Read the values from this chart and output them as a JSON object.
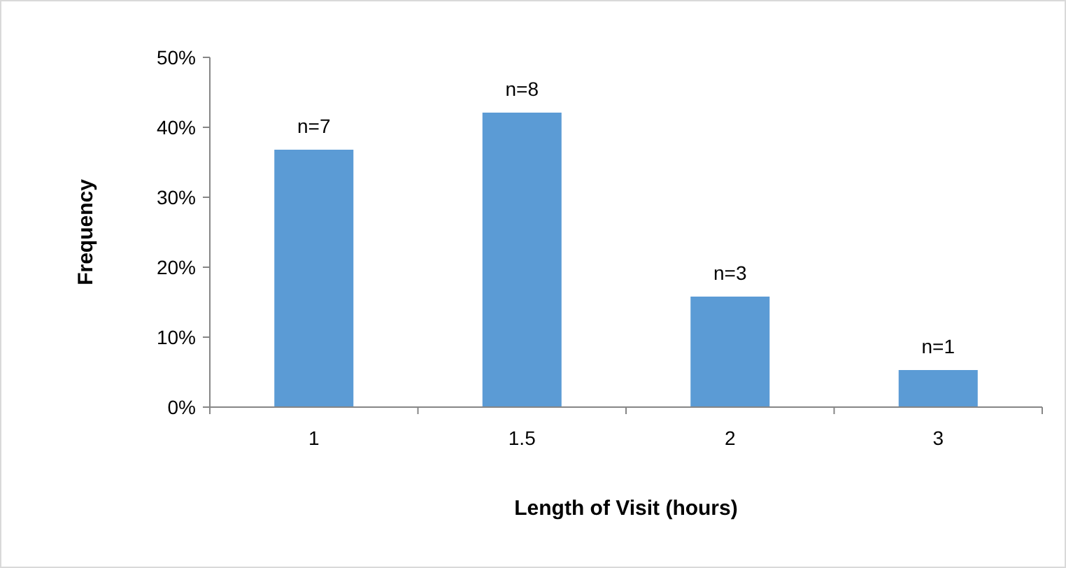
{
  "chart_data": {
    "type": "bar",
    "xlabel": "Length of Visit (hours)",
    "ylabel": "Frequency",
    "categories": [
      "1",
      "1.5",
      "2",
      "3"
    ],
    "values": [
      36.8,
      42.1,
      15.8,
      5.3
    ],
    "annotations": [
      {
        "text": "n=7",
        "x": "1",
        "y": 36.8
      },
      {
        "text": "n=8",
        "x": "1.5",
        "y": 42.1
      },
      {
        "text": "n=3",
        "x": "2",
        "y": 15.8
      },
      {
        "text": "n=1",
        "x": "3",
        "y": 5.3
      }
    ],
    "color": "#5b9bd5",
    "ylim": [
      0,
      50
    ],
    "yticks": [
      {
        "value": 0,
        "label": "0%"
      },
      {
        "value": 10,
        "label": "10%"
      },
      {
        "value": 20,
        "label": "20%"
      },
      {
        "value": 30,
        "label": "30%"
      },
      {
        "value": 40,
        "label": "40%"
      },
      {
        "value": 50,
        "label": "50%"
      }
    ],
    "grid": false
  }
}
